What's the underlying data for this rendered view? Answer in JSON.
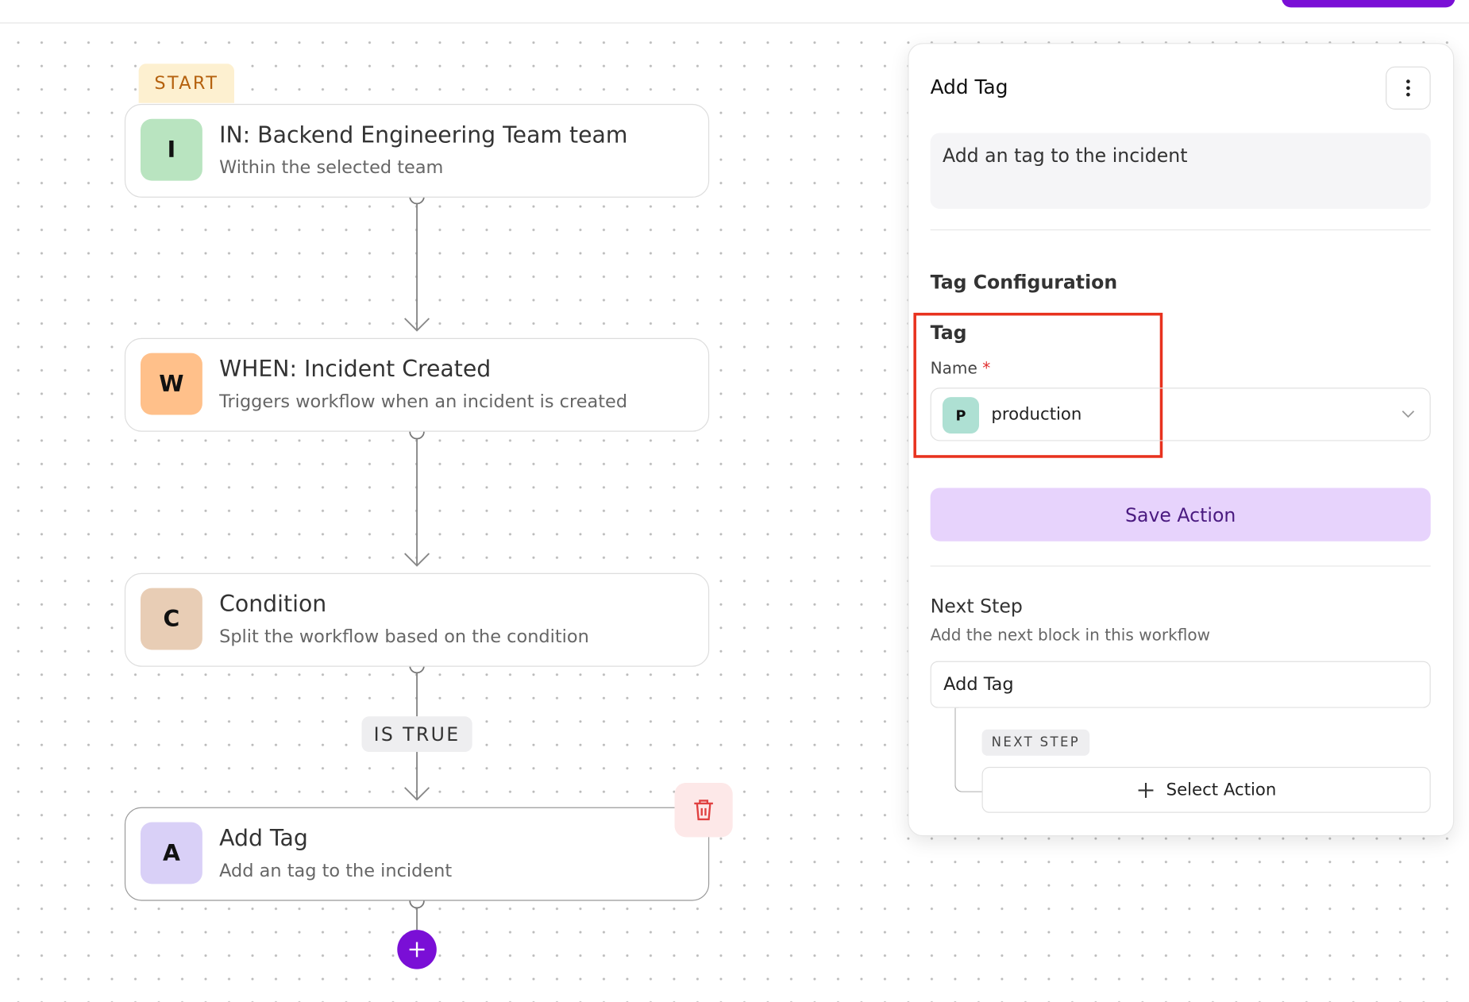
{
  "start_label": "START",
  "nodes": [
    {
      "icon": "I",
      "title": "IN: Backend Engineering Team team",
      "subtitle": "Within the selected team"
    },
    {
      "icon": "W",
      "title": "WHEN: Incident Created",
      "subtitle": "Triggers workflow when an incident is created"
    },
    {
      "icon": "C",
      "title": "Condition",
      "subtitle": "Split the workflow based on the condition"
    },
    {
      "icon": "A",
      "title": "Add Tag",
      "subtitle": "Add an tag to the incident"
    }
  ],
  "branch_label": "IS TRUE",
  "panel": {
    "title": "Add Tag",
    "description": "Add an tag to the incident",
    "section_title": "Tag Configuration",
    "group_label": "Tag",
    "field_label": "Name",
    "required_mark": "*",
    "field_value": {
      "icon": "P",
      "text": "production"
    },
    "save_button": "Save Action",
    "next_step": {
      "title": "Next Step",
      "subtitle": "Add the next block in this workflow",
      "current": "Add Tag",
      "badge": "NEXT STEP",
      "select_button": "Select Action"
    }
  }
}
